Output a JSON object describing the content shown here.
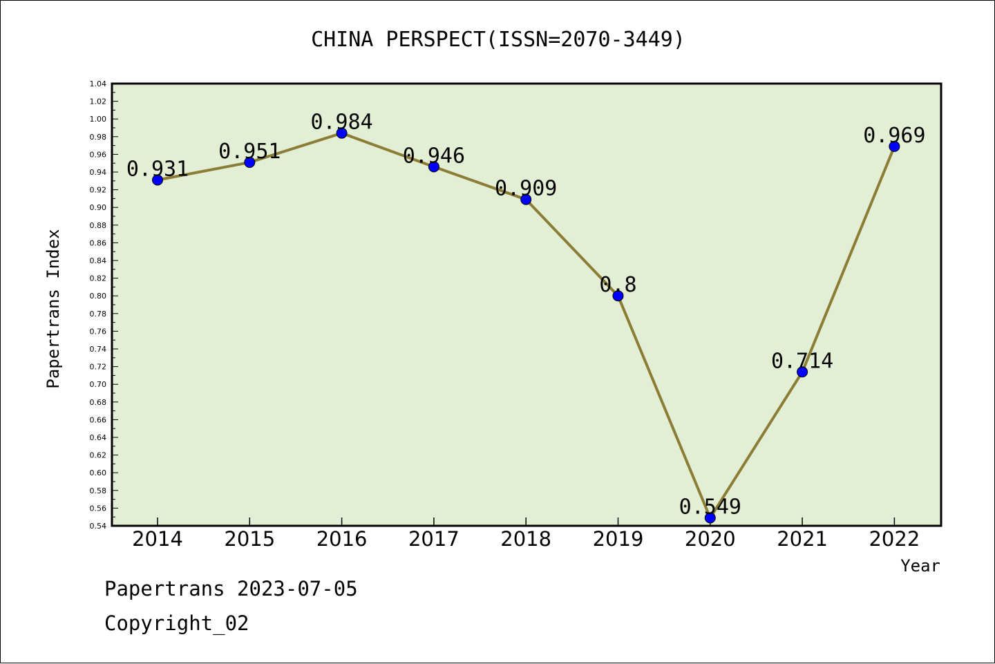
{
  "chart_data": {
    "type": "line",
    "title": "CHINA PERSPECT(ISSN=2070-3449)",
    "xlabel": "Year",
    "ylabel": "Papertrans Index",
    "categories": [
      "2014",
      "2015",
      "2016",
      "2017",
      "2018",
      "2019",
      "2020",
      "2021",
      "2022"
    ],
    "series": [
      {
        "values": [
          0.931,
          0.951,
          0.984,
          0.946,
          0.909,
          0.8,
          0.549,
          0.714,
          0.969
        ],
        "data_labels": [
          "0.931",
          "0.951",
          "0.984",
          "0.946",
          "0.909",
          "0.8",
          "0.549",
          "0.714",
          "0.969"
        ]
      }
    ],
    "ylim": [
      0.54,
      1.04
    ],
    "yticks": [
      "0.54",
      "0.56",
      "0.58",
      "0.60",
      "0.62",
      "0.64",
      "0.66",
      "0.68",
      "0.70",
      "0.72",
      "0.74",
      "0.76",
      "0.78",
      "0.80",
      "0.82",
      "0.84",
      "0.86",
      "0.88",
      "0.90",
      "0.92",
      "0.94",
      "0.96",
      "0.98",
      "1.00",
      "1.02",
      "1.04"
    ],
    "grid": false,
    "legend": "none",
    "colors": {
      "line": "#8b7d35",
      "marker": "#0000ff",
      "plot_background": "#e2efd5",
      "axis": "#000000"
    }
  },
  "footer": {
    "line1": "Papertrans 2023-07-05",
    "line2": "Copyright_02"
  }
}
